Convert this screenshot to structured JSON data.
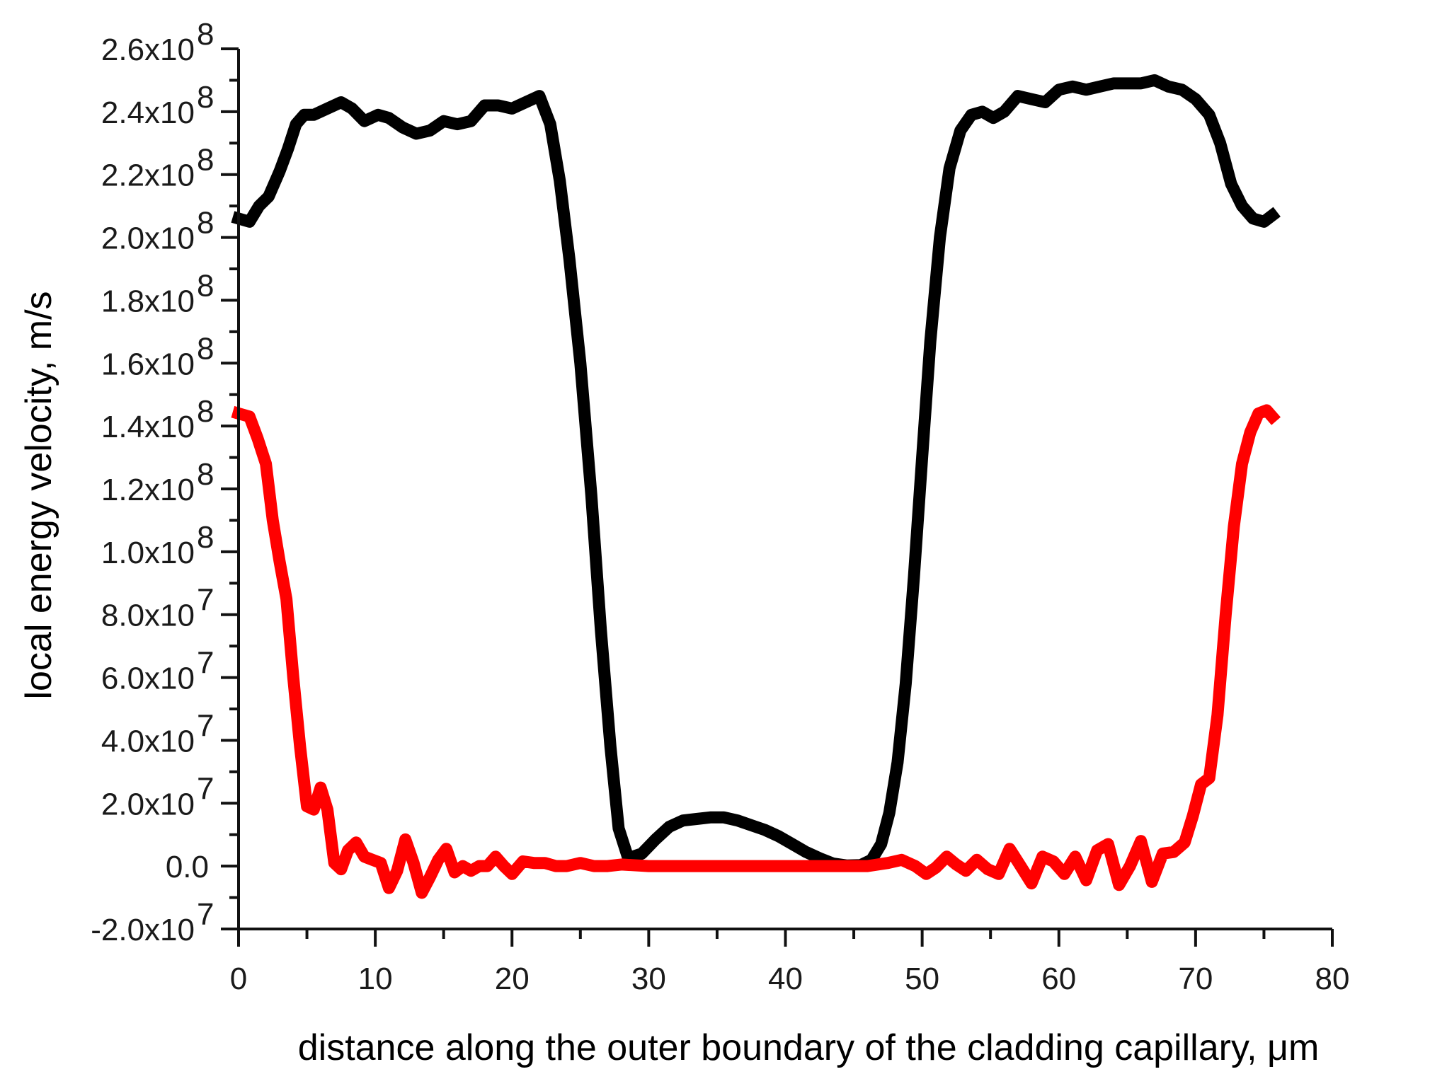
{
  "chart_data": {
    "type": "scatter",
    "title": "",
    "xlabel": "distance along the outer boundary of the cladding capillary, μm",
    "ylabel": "local energy velocity, m/s",
    "xlim": [
      0,
      80
    ],
    "ylim": [
      -20000000,
      260000000
    ],
    "grid": false,
    "legend": null,
    "x_ticks": [
      0,
      10,
      20,
      30,
      40,
      50,
      60,
      70,
      80
    ],
    "x_tick_labels": [
      "0",
      "10",
      "20",
      "30",
      "40",
      "50",
      "60",
      "70",
      "80"
    ],
    "y_ticks": [
      -20000000,
      0,
      20000000,
      40000000,
      60000000,
      80000000,
      100000000,
      120000000,
      140000000,
      160000000,
      180000000,
      200000000,
      220000000,
      240000000,
      260000000
    ],
    "y_tick_labels": [
      {
        "mant": "-2.0x10",
        "exp": "7"
      },
      {
        "mant": "0.0",
        "exp": ""
      },
      {
        "mant": "2.0x10",
        "exp": "7"
      },
      {
        "mant": "4.0x10",
        "exp": "7"
      },
      {
        "mant": "6.0x10",
        "exp": "7"
      },
      {
        "mant": "8.0x10",
        "exp": "7"
      },
      {
        "mant": "1.0x10",
        "exp": "8"
      },
      {
        "mant": "1.2x10",
        "exp": "8"
      },
      {
        "mant": "1.4x10",
        "exp": "8"
      },
      {
        "mant": "1.6x10",
        "exp": "8"
      },
      {
        "mant": "1.8x10",
        "exp": "8"
      },
      {
        "mant": "2.0x10",
        "exp": "8"
      },
      {
        "mant": "2.2x10",
        "exp": "8"
      },
      {
        "mant": "2.4x10",
        "exp": "8"
      },
      {
        "mant": "2.6x10",
        "exp": "8"
      }
    ],
    "series": [
      {
        "name": "black",
        "color": "#000000",
        "x": [
          0,
          0.8,
          1.5,
          2.2,
          3.0,
          3.6,
          4.2,
          4.8,
          5.5,
          6.5,
          7.5,
          8.3,
          9.2,
          10.2,
          11.0,
          12.0,
          13.0,
          14.0,
          15.0,
          16.0,
          17.0,
          18.0,
          19.0,
          20.0,
          21.0,
          22.0,
          22.8,
          23.5,
          24.2,
          25.0,
          25.8,
          26.5,
          27.2,
          27.8,
          28.5,
          29.5,
          30.5,
          31.5,
          32.5,
          33.5,
          34.5,
          35.5,
          36.5,
          37.5,
          38.5,
          39.5,
          40.5,
          41.5,
          42.5,
          43.5,
          44.5,
          45.5,
          46.3,
          47.0,
          47.6,
          48.2,
          48.8,
          49.4,
          50.0,
          50.6,
          51.3,
          52.0,
          52.8,
          53.6,
          54.4,
          55.2,
          56.0,
          57.0,
          58.0,
          59.0,
          60.0,
          61.0,
          62.0,
          63.0,
          64.0,
          65.0,
          66.0,
          67.0,
          68.0,
          69.0,
          70.0,
          71.0,
          71.8,
          72.6,
          73.4,
          74.2,
          75.0,
          75.6
        ],
        "y": [
          206000000,
          205000000,
          210000000,
          213000000,
          221000000,
          228000000,
          236000000,
          239000000,
          239000000,
          241000000,
          243000000,
          241000000,
          237000000,
          239000000,
          238000000,
          235000000,
          233000000,
          234000000,
          237000000,
          236000000,
          237000000,
          242000000,
          242000000,
          241000000,
          243000000,
          245000000,
          236000000,
          218000000,
          193000000,
          160000000,
          118000000,
          75000000,
          38000000,
          12000000,
          2500000,
          4000000,
          8500000,
          12500000,
          14500000,
          15000000,
          15500000,
          15500000,
          14500000,
          13000000,
          11500000,
          9500000,
          7000000,
          4500000,
          2500000,
          800000,
          200000,
          300000,
          2000000,
          7000000,
          17000000,
          33000000,
          58000000,
          92000000,
          130000000,
          167000000,
          200000000,
          222000000,
          234000000,
          239000000,
          240000000,
          238000000,
          240000000,
          245000000,
          244000000,
          243000000,
          247000000,
          248000000,
          247000000,
          248000000,
          249000000,
          249000000,
          249000000,
          250000000,
          248000000,
          247000000,
          244000000,
          239000000,
          230000000,
          217000000,
          210000000,
          206000000,
          205000000,
          207000000
        ]
      },
      {
        "name": "red",
        "color": "#ff0000",
        "x": [
          0,
          0.8,
          1.4,
          2.0,
          2.5,
          3.0,
          3.5,
          4.0,
          4.5,
          5.0,
          5.5,
          6.0,
          6.5,
          7.0,
          7.5,
          8.0,
          8.6,
          9.2,
          9.8,
          10.4,
          11.0,
          11.6,
          12.2,
          12.8,
          13.4,
          14.0,
          14.6,
          15.2,
          15.8,
          16.4,
          17.0,
          17.6,
          18.2,
          18.8,
          19.4,
          20.0,
          20.8,
          21.6,
          22.4,
          23.2,
          24.0,
          25.0,
          26.0,
          27.0,
          28.0,
          30.0,
          32.0,
          34.0,
          36.0,
          38.0,
          40.0,
          42.0,
          44.0,
          46.0,
          47.5,
          48.5,
          49.5,
          50.3,
          51.0,
          51.8,
          52.5,
          53.2,
          54.0,
          54.8,
          55.6,
          56.4,
          57.2,
          58.0,
          58.8,
          59.6,
          60.4,
          61.2,
          62.0,
          62.8,
          63.6,
          64.4,
          65.2,
          66.0,
          66.8,
          67.6,
          68.4,
          69.2,
          69.8,
          70.4,
          71.0,
          71.6,
          72.2,
          72.8,
          73.4,
          74.0,
          74.6,
          75.2,
          75.6
        ],
        "y": [
          144000000,
          143000000,
          136000000,
          128000000,
          110000000,
          97000000,
          85000000,
          60000000,
          38000000,
          19000000,
          18000000,
          25000000,
          18000000,
          1000000,
          -1000000,
          5000000,
          7500000,
          3000000,
          2000000,
          1000000,
          -7000000,
          -1500000,
          8500000,
          1000000,
          -8500000,
          -3500000,
          2000000,
          5500000,
          -2000000,
          0,
          -1500000,
          0,
          0,
          3000000,
          0,
          -2500000,
          1500000,
          1000000,
          1000000,
          0,
          0,
          1000000,
          0,
          0,
          500000,
          0,
          0,
          0,
          0,
          0,
          0,
          0,
          0,
          0,
          1000000,
          2000000,
          0,
          -2500000,
          -500000,
          3000000,
          500000,
          -1500000,
          2000000,
          -1000000,
          -2500000,
          5500000,
          0,
          -5500000,
          3000000,
          1500000,
          -2500000,
          3000000,
          -4500000,
          5000000,
          7000000,
          -6000000,
          0,
          8000000,
          -5000000,
          4000000,
          4500000,
          7500000,
          16000000,
          26000000,
          28000000,
          48000000,
          80000000,
          108000000,
          128000000,
          138000000,
          144000000,
          145000000,
          143000000
        ]
      }
    ]
  }
}
